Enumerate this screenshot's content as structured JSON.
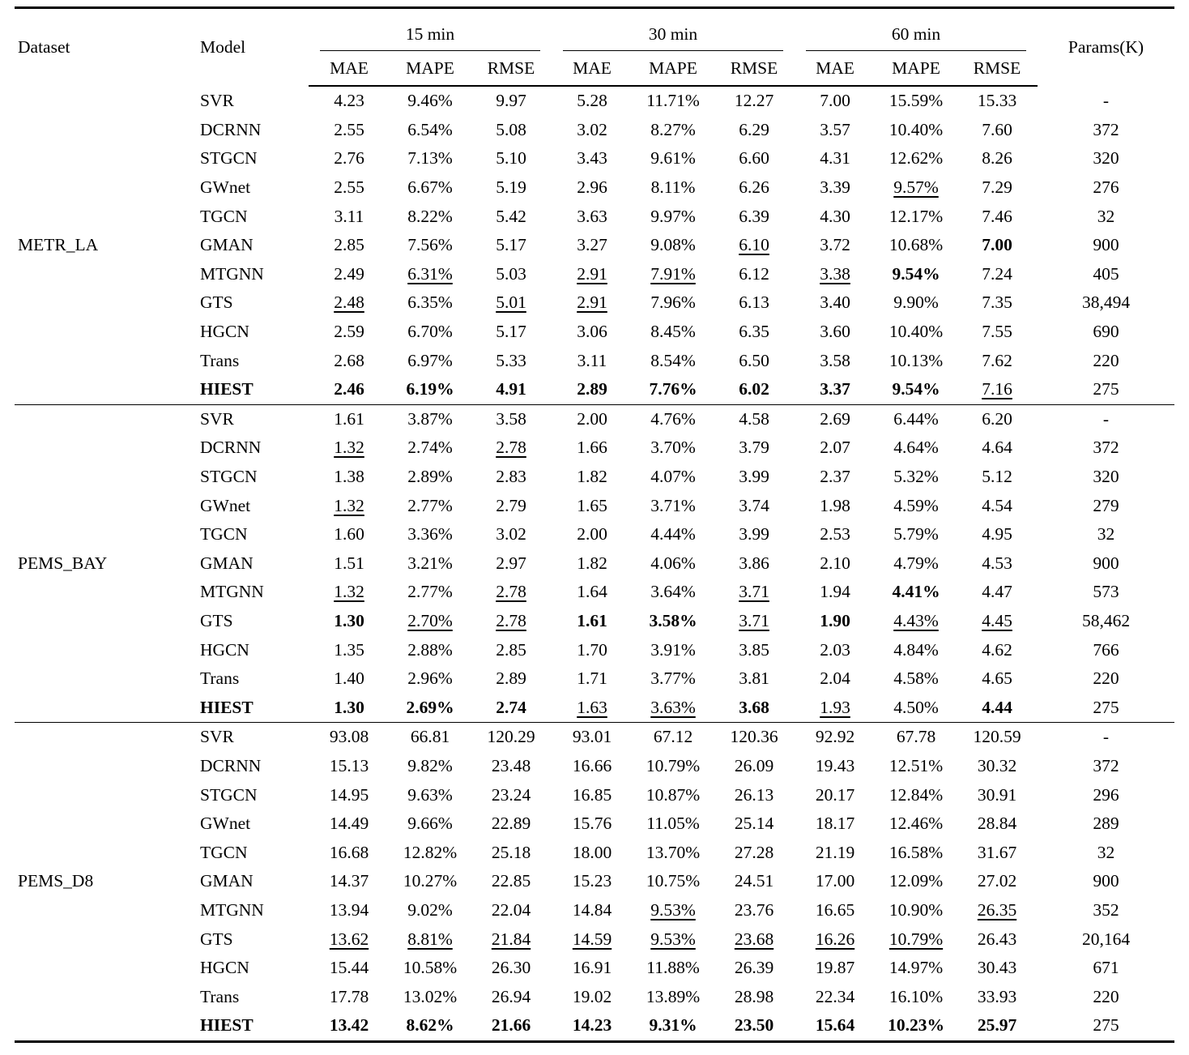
{
  "header": {
    "dataset": "Dataset",
    "model": "Model",
    "groups": [
      {
        "label": "15 min"
      },
      {
        "label": "30 min"
      },
      {
        "label": "60 min"
      }
    ],
    "metrics": [
      "MAE",
      "MAPE",
      "RMSE"
    ],
    "params": "Params(K)"
  },
  "sections": [
    {
      "dataset": "METR_LA",
      "rows": [
        {
          "model": "SVR",
          "cells": [
            "4.23",
            "9.46%",
            "9.97",
            "5.28",
            "11.71%",
            "12.27",
            "7.00",
            "15.59%",
            "15.33",
            "-"
          ]
        },
        {
          "model": "DCRNN",
          "cells": [
            "2.55",
            "6.54%",
            "5.08",
            "3.02",
            "8.27%",
            "6.29",
            "3.57",
            "10.40%",
            "7.60",
            "372"
          ]
        },
        {
          "model": "STGCN",
          "cells": [
            "2.76",
            "7.13%",
            "5.10",
            "3.43",
            "9.61%",
            "6.60",
            "4.31",
            "12.62%",
            "8.26",
            "320"
          ]
        },
        {
          "model": "GWnet",
          "cells": [
            "2.55",
            "6.67%",
            "5.19",
            "2.96",
            "8.11%",
            "6.26",
            "3.39",
            [
              "9.57%",
              "u"
            ],
            "7.29",
            "276"
          ]
        },
        {
          "model": "TGCN",
          "cells": [
            "3.11",
            "8.22%",
            "5.42",
            "3.63",
            "9.97%",
            "6.39",
            "4.30",
            "12.17%",
            "7.46",
            "32"
          ]
        },
        {
          "model": "GMAN",
          "cells": [
            "2.85",
            "7.56%",
            "5.17",
            "3.27",
            "9.08%",
            [
              "6.10",
              "u"
            ],
            "3.72",
            "10.68%",
            [
              "7.00",
              "b"
            ],
            "900"
          ]
        },
        {
          "model": "MTGNN",
          "cells": [
            "2.49",
            [
              "6.31%",
              "u"
            ],
            "5.03",
            [
              "2.91",
              "u"
            ],
            [
              "7.91%",
              "u"
            ],
            "6.12",
            [
              "3.38",
              "u"
            ],
            [
              "9.54%",
              "b"
            ],
            "7.24",
            "405"
          ]
        },
        {
          "model": "GTS",
          "cells": [
            [
              "2.48",
              "u"
            ],
            "6.35%",
            [
              "5.01",
              "u"
            ],
            [
              "2.91",
              "u"
            ],
            "7.96%",
            "6.13",
            "3.40",
            "9.90%",
            "7.35",
            "38,494"
          ]
        },
        {
          "model": "HGCN",
          "cells": [
            "2.59",
            "6.70%",
            "5.17",
            "3.06",
            "8.45%",
            "6.35",
            "3.60",
            "10.40%",
            "7.55",
            "690"
          ]
        },
        {
          "model": "Trans",
          "cells": [
            "2.68",
            "6.97%",
            "5.33",
            "3.11",
            "8.54%",
            "6.50",
            "3.58",
            "10.13%",
            "7.62",
            "220"
          ]
        },
        {
          "model": [
            "HIEST",
            "b"
          ],
          "cells": [
            [
              "2.46",
              "b"
            ],
            [
              "6.19%",
              "b"
            ],
            [
              "4.91",
              "b"
            ],
            [
              "2.89",
              "b"
            ],
            [
              "7.76%",
              "b"
            ],
            [
              "6.02",
              "b"
            ],
            [
              "3.37",
              "b"
            ],
            [
              "9.54%",
              "b"
            ],
            [
              "7.16",
              "u"
            ],
            "275"
          ]
        }
      ]
    },
    {
      "dataset": "PEMS_BAY",
      "rows": [
        {
          "model": "SVR",
          "cells": [
            "1.61",
            "3.87%",
            "3.58",
            "2.00",
            "4.76%",
            "4.58",
            "2.69",
            "6.44%",
            "6.20",
            "-"
          ]
        },
        {
          "model": "DCRNN",
          "cells": [
            [
              "1.32",
              "u"
            ],
            "2.74%",
            [
              "2.78",
              "u"
            ],
            "1.66",
            "3.70%",
            "3.79",
            "2.07",
            "4.64%",
            "4.64",
            "372"
          ]
        },
        {
          "model": "STGCN",
          "cells": [
            "1.38",
            "2.89%",
            "2.83",
            "1.82",
            "4.07%",
            "3.99",
            "2.37",
            "5.32%",
            "5.12",
            "320"
          ]
        },
        {
          "model": "GWnet",
          "cells": [
            [
              "1.32",
              "u"
            ],
            "2.77%",
            "2.79",
            "1.65",
            "3.71%",
            "3.74",
            "1.98",
            "4.59%",
            "4.54",
            "279"
          ]
        },
        {
          "model": "TGCN",
          "cells": [
            "1.60",
            "3.36%",
            "3.02",
            "2.00",
            "4.44%",
            "3.99",
            "2.53",
            "5.79%",
            "4.95",
            "32"
          ]
        },
        {
          "model": "GMAN",
          "cells": [
            "1.51",
            "3.21%",
            "2.97",
            "1.82",
            "4.06%",
            "3.86",
            "2.10",
            "4.79%",
            "4.53",
            "900"
          ]
        },
        {
          "model": "MTGNN",
          "cells": [
            [
              "1.32",
              "u"
            ],
            "2.77%",
            [
              "2.78",
              "u"
            ],
            "1.64",
            "3.64%",
            [
              "3.71",
              "u"
            ],
            "1.94",
            [
              "4.41%",
              "b"
            ],
            "4.47",
            "573"
          ]
        },
        {
          "model": "GTS",
          "cells": [
            [
              "1.30",
              "b"
            ],
            [
              "2.70%",
              "u"
            ],
            [
              "2.78",
              "u"
            ],
            [
              "1.61",
              "b"
            ],
            [
              "3.58%",
              "b"
            ],
            [
              "3.71",
              "u"
            ],
            [
              "1.90",
              "b"
            ],
            [
              "4.43%",
              "u"
            ],
            [
              "4.45",
              "u"
            ],
            "58,462"
          ]
        },
        {
          "model": "HGCN",
          "cells": [
            "1.35",
            "2.88%",
            "2.85",
            "1.70",
            "3.91%",
            "3.85",
            "2.03",
            "4.84%",
            "4.62",
            "766"
          ]
        },
        {
          "model": "Trans",
          "cells": [
            "1.40",
            "2.96%",
            "2.89",
            "1.71",
            "3.77%",
            "3.81",
            "2.04",
            "4.58%",
            "4.65",
            "220"
          ]
        },
        {
          "model": [
            "HIEST",
            "b"
          ],
          "cells": [
            [
              "1.30",
              "b"
            ],
            [
              "2.69%",
              "b"
            ],
            [
              "2.74",
              "b"
            ],
            [
              "1.63",
              "u"
            ],
            [
              "3.63%",
              "u"
            ],
            [
              "3.68",
              "b"
            ],
            [
              "1.93",
              "u"
            ],
            "4.50%",
            [
              "4.44",
              "b"
            ],
            "275"
          ]
        }
      ]
    },
    {
      "dataset": "PEMS_D8",
      "rows": [
        {
          "model": "SVR",
          "cells": [
            "93.08",
            "66.81",
            "120.29",
            "93.01",
            "67.12",
            "120.36",
            "92.92",
            "67.78",
            "120.59",
            "-"
          ]
        },
        {
          "model": "DCRNN",
          "cells": [
            "15.13",
            "9.82%",
            "23.48",
            "16.66",
            "10.79%",
            "26.09",
            "19.43",
            "12.51%",
            "30.32",
            "372"
          ]
        },
        {
          "model": "STGCN",
          "cells": [
            "14.95",
            "9.63%",
            "23.24",
            "16.85",
            "10.87%",
            "26.13",
            "20.17",
            "12.84%",
            "30.91",
            "296"
          ]
        },
        {
          "model": "GWnet",
          "cells": [
            "14.49",
            "9.66%",
            "22.89",
            "15.76",
            "11.05%",
            "25.14",
            "18.17",
            "12.46%",
            "28.84",
            "289"
          ]
        },
        {
          "model": "TGCN",
          "cells": [
            "16.68",
            "12.82%",
            "25.18",
            "18.00",
            "13.70%",
            "27.28",
            "21.19",
            "16.58%",
            "31.67",
            "32"
          ]
        },
        {
          "model": "GMAN",
          "cells": [
            "14.37",
            "10.27%",
            "22.85",
            "15.23",
            "10.75%",
            "24.51",
            "17.00",
            "12.09%",
            "27.02",
            "900"
          ]
        },
        {
          "model": "MTGNN",
          "cells": [
            "13.94",
            "9.02%",
            "22.04",
            "14.84",
            [
              "9.53%",
              "u"
            ],
            "23.76",
            "16.65",
            "10.90%",
            [
              "26.35",
              "u"
            ],
            "352"
          ]
        },
        {
          "model": "GTS",
          "cells": [
            [
              "13.62",
              "u"
            ],
            [
              "8.81%",
              "u"
            ],
            [
              "21.84",
              "u"
            ],
            [
              "14.59",
              "u"
            ],
            [
              "9.53%",
              "u"
            ],
            [
              "23.68",
              "u"
            ],
            [
              "16.26",
              "u"
            ],
            [
              "10.79%",
              "u"
            ],
            "26.43",
            "20,164"
          ]
        },
        {
          "model": "HGCN",
          "cells": [
            "15.44",
            "10.58%",
            "26.30",
            "16.91",
            "11.88%",
            "26.39",
            "19.87",
            "14.97%",
            "30.43",
            "671"
          ]
        },
        {
          "model": "Trans",
          "cells": [
            "17.78",
            "13.02%",
            "26.94",
            "19.02",
            "13.89%",
            "28.98",
            "22.34",
            "16.10%",
            "33.93",
            "220"
          ]
        },
        {
          "model": [
            "HIEST",
            "b"
          ],
          "cells": [
            [
              "13.42",
              "b"
            ],
            [
              "8.62%",
              "b"
            ],
            [
              "21.66",
              "b"
            ],
            [
              "14.23",
              "b"
            ],
            [
              "9.31%",
              "b"
            ],
            [
              "23.50",
              "b"
            ],
            [
              "15.64",
              "b"
            ],
            [
              "10.23%",
              "b"
            ],
            [
              "25.97",
              "b"
            ],
            "275"
          ]
        }
      ]
    }
  ]
}
